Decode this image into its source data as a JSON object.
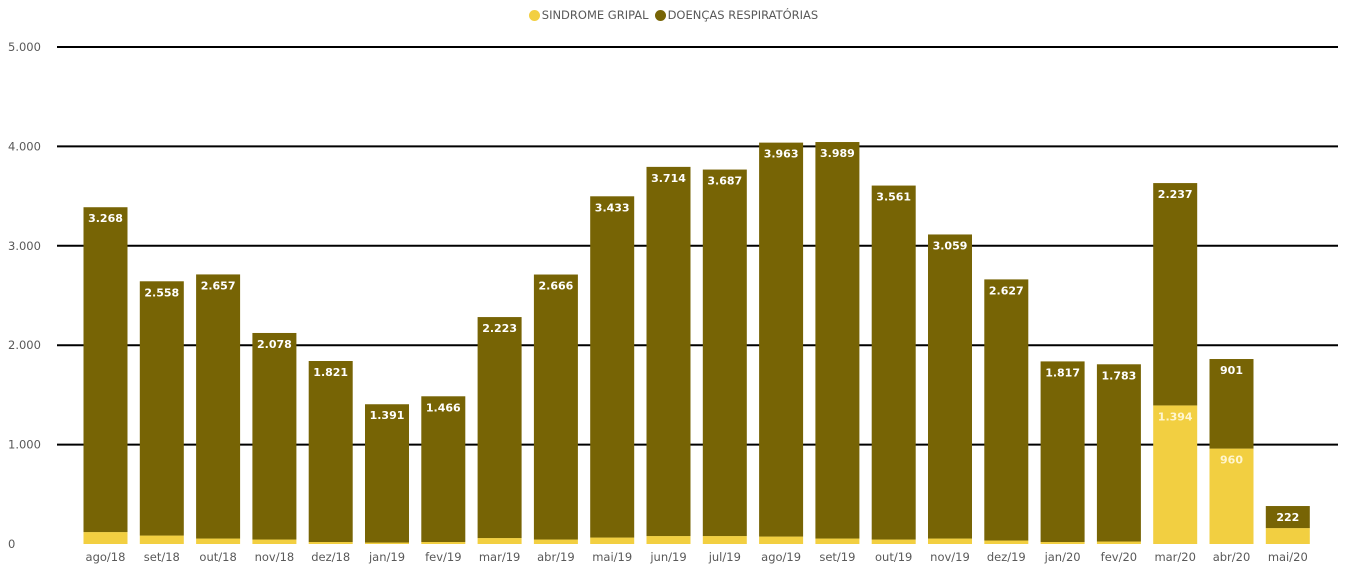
{
  "colors": {
    "sindrome_gripal": "#F2CF41",
    "doencas_respiratorias": "#776405",
    "gridline": "#000000",
    "axis_text": "#595959",
    "label_text": "#ffffff"
  },
  "chart_data": {
    "type": "bar",
    "stacked": true,
    "legend_position": "top-center",
    "grid": true,
    "ylim": [
      0,
      5000
    ],
    "yticks": [
      0,
      1000,
      2000,
      3000,
      4000,
      5000
    ],
    "ytick_labels": [
      "0",
      "1.000",
      "2.000",
      "3.000",
      "4.000",
      "5.000"
    ],
    "categories": [
      "ago/18",
      "set/18",
      "out/18",
      "nov/18",
      "dez/18",
      "jan/19",
      "fev/19",
      "mar/19",
      "abr/19",
      "mai/19",
      "jun/19",
      "jul/19",
      "ago/19",
      "set/19",
      "out/19",
      "nov/19",
      "dez/19",
      "jan/20",
      "fev/20",
      "mar/20",
      "abr/20",
      "mai/20"
    ],
    "series": [
      {
        "name": "SINDROME GRIPAL",
        "color": "#F2CF41",
        "values": [
          120,
          85,
          55,
          45,
          20,
          15,
          20,
          60,
          45,
          65,
          80,
          80,
          75,
          55,
          45,
          55,
          35,
          20,
          25,
          1394,
          960,
          160
        ],
        "labels": [
          "",
          "",
          "",
          "",
          "",
          "",
          "",
          "",
          "",
          "",
          "",
          "",
          "",
          "",
          "",
          "",
          "",
          "",
          "",
          "1.394",
          "960",
          ""
        ]
      },
      {
        "name": "DOENÇAS RESPIRATÓRIAS",
        "color": "#776405",
        "values": [
          3268,
          2558,
          2657,
          2078,
          1821,
          1391,
          1466,
          2223,
          2666,
          3433,
          3714,
          3687,
          3963,
          3989,
          3561,
          3059,
          2627,
          1817,
          1783,
          2237,
          901,
          222
        ],
        "labels": [
          "3.268",
          "2.558",
          "2.657",
          "2.078",
          "1.821",
          "1.391",
          "1.466",
          "2.223",
          "2.666",
          "3.433",
          "3.714",
          "3.687",
          "3.963",
          "3.989",
          "3.561",
          "3.059",
          "2.627",
          "1.817",
          "1.783",
          "2.237",
          "901",
          "222"
        ]
      }
    ]
  }
}
